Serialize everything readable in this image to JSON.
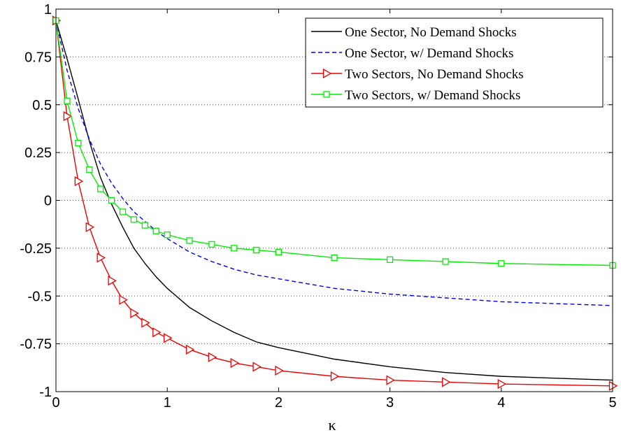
{
  "chart_data": {
    "type": "line",
    "title": "",
    "xlabel": "κ",
    "ylabel": "",
    "xlim": [
      0,
      5
    ],
    "ylim": [
      -1,
      1
    ],
    "xticks": [
      0,
      1,
      2,
      3,
      4,
      5
    ],
    "xtick_labels": [
      "0",
      "1",
      "2",
      "3",
      "4",
      "5"
    ],
    "yticks": [
      1,
      0.75,
      0.5,
      0.25,
      0,
      -0.25,
      -0.5,
      -0.75,
      -1
    ],
    "ytick_labels": [
      "1",
      "0.75",
      "0.5",
      "0.25",
      "0",
      "-0.25",
      "-0.5",
      "-0.75",
      "-1"
    ],
    "grid": "dotted horizontal",
    "legend_position": "top-right",
    "series": [
      {
        "name": "One Sector, No Demand Shocks",
        "color": "#000000",
        "line": "solid",
        "marker": "none",
        "x": [
          0,
          0.1,
          0.2,
          0.3,
          0.4,
          0.5,
          0.6,
          0.7,
          0.8,
          0.9,
          1.0,
          1.2,
          1.4,
          1.6,
          1.8,
          2.0,
          2.5,
          3.0,
          3.5,
          4.0,
          5.0
        ],
        "y": [
          0.94,
          0.74,
          0.53,
          0.31,
          0.12,
          -0.02,
          -0.14,
          -0.25,
          -0.33,
          -0.4,
          -0.46,
          -0.56,
          -0.63,
          -0.69,
          -0.74,
          -0.77,
          -0.83,
          -0.87,
          -0.9,
          -0.92,
          -0.94
        ]
      },
      {
        "name": "One Sector, w/ Demand Shocks",
        "color": "#0000ee",
        "line": "dashed",
        "marker": "none",
        "x": [
          0,
          0.1,
          0.2,
          0.3,
          0.4,
          0.5,
          0.6,
          0.7,
          0.8,
          0.9,
          1.0,
          1.2,
          1.4,
          1.6,
          1.8,
          2.0,
          2.5,
          3.0,
          3.5,
          4.0,
          5.0
        ],
        "y": [
          0.94,
          0.68,
          0.48,
          0.32,
          0.19,
          0.09,
          0.01,
          -0.06,
          -0.11,
          -0.16,
          -0.2,
          -0.27,
          -0.32,
          -0.36,
          -0.39,
          -0.41,
          -0.46,
          -0.49,
          -0.51,
          -0.53,
          -0.55
        ]
      },
      {
        "name": "Two Sectors, No Demand Shocks",
        "color": "#ee0000",
        "line": "solid",
        "marker": "triangle-right",
        "x": [
          0,
          0.1,
          0.2,
          0.3,
          0.4,
          0.5,
          0.6,
          0.7,
          0.8,
          0.9,
          1.0,
          1.2,
          1.4,
          1.6,
          1.8,
          2.0,
          2.5,
          3.0,
          3.5,
          4.0,
          5.0
        ],
        "y": [
          0.94,
          0.44,
          0.1,
          -0.14,
          -0.3,
          -0.42,
          -0.52,
          -0.59,
          -0.64,
          -0.69,
          -0.72,
          -0.78,
          -0.82,
          -0.85,
          -0.87,
          -0.89,
          -0.92,
          -0.94,
          -0.95,
          -0.96,
          -0.97
        ]
      },
      {
        "name": "Two Sectors, w/ Demand Shocks",
        "color": "#00ee00",
        "line": "solid",
        "marker": "square",
        "x": [
          0,
          0.1,
          0.2,
          0.3,
          0.4,
          0.5,
          0.6,
          0.7,
          0.8,
          0.9,
          1.0,
          1.2,
          1.4,
          1.6,
          1.8,
          2.0,
          2.5,
          3.0,
          3.5,
          4.0,
          5.0
        ],
        "y": [
          0.94,
          0.52,
          0.3,
          0.16,
          0.06,
          0.0,
          -0.06,
          -0.1,
          -0.13,
          -0.16,
          -0.18,
          -0.21,
          -0.23,
          -0.25,
          -0.26,
          -0.27,
          -0.3,
          -0.31,
          -0.32,
          -0.33,
          -0.34
        ]
      }
    ]
  }
}
